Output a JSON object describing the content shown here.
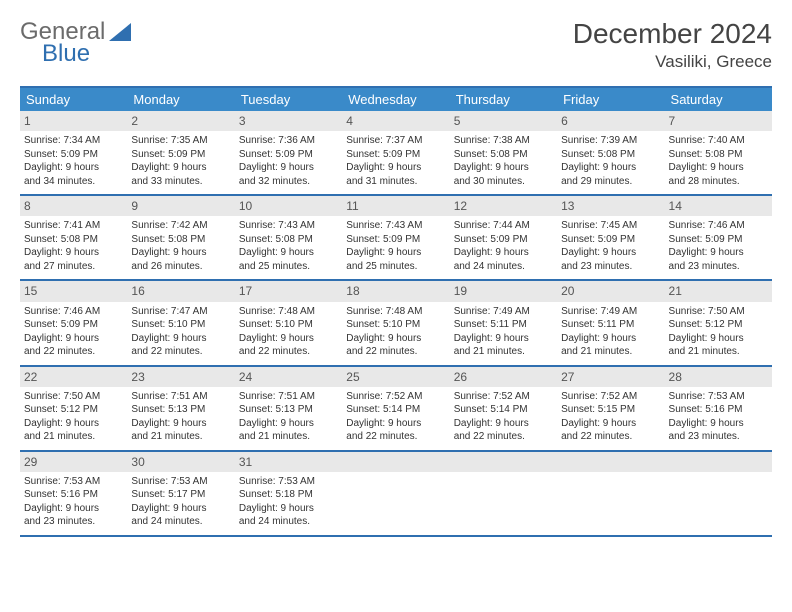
{
  "logo": {
    "text_general": "General",
    "text_blue": "Blue",
    "accent_color": "#2f6fb0"
  },
  "title": "December 2024",
  "location": "Vasiliki, Greece",
  "colors": {
    "header_bg": "#3a8ac9",
    "border": "#2f6fb0",
    "daynum_bg": "#e8e8e8",
    "text": "#333333",
    "background": "#ffffff"
  },
  "typography": {
    "title_fontsize": 28,
    "location_fontsize": 17,
    "dayheader_fontsize": 13,
    "daynum_fontsize": 12,
    "body_fontsize": 10
  },
  "day_headers": [
    "Sunday",
    "Monday",
    "Tuesday",
    "Wednesday",
    "Thursday",
    "Friday",
    "Saturday"
  ],
  "weeks": [
    [
      {
        "day": "1",
        "sunrise": "Sunrise: 7:34 AM",
        "sunset": "Sunset: 5:09 PM",
        "daylight1": "Daylight: 9 hours",
        "daylight2": "and 34 minutes."
      },
      {
        "day": "2",
        "sunrise": "Sunrise: 7:35 AM",
        "sunset": "Sunset: 5:09 PM",
        "daylight1": "Daylight: 9 hours",
        "daylight2": "and 33 minutes."
      },
      {
        "day": "3",
        "sunrise": "Sunrise: 7:36 AM",
        "sunset": "Sunset: 5:09 PM",
        "daylight1": "Daylight: 9 hours",
        "daylight2": "and 32 minutes."
      },
      {
        "day": "4",
        "sunrise": "Sunrise: 7:37 AM",
        "sunset": "Sunset: 5:09 PM",
        "daylight1": "Daylight: 9 hours",
        "daylight2": "and 31 minutes."
      },
      {
        "day": "5",
        "sunrise": "Sunrise: 7:38 AM",
        "sunset": "Sunset: 5:08 PM",
        "daylight1": "Daylight: 9 hours",
        "daylight2": "and 30 minutes."
      },
      {
        "day": "6",
        "sunrise": "Sunrise: 7:39 AM",
        "sunset": "Sunset: 5:08 PM",
        "daylight1": "Daylight: 9 hours",
        "daylight2": "and 29 minutes."
      },
      {
        "day": "7",
        "sunrise": "Sunrise: 7:40 AM",
        "sunset": "Sunset: 5:08 PM",
        "daylight1": "Daylight: 9 hours",
        "daylight2": "and 28 minutes."
      }
    ],
    [
      {
        "day": "8",
        "sunrise": "Sunrise: 7:41 AM",
        "sunset": "Sunset: 5:08 PM",
        "daylight1": "Daylight: 9 hours",
        "daylight2": "and 27 minutes."
      },
      {
        "day": "9",
        "sunrise": "Sunrise: 7:42 AM",
        "sunset": "Sunset: 5:08 PM",
        "daylight1": "Daylight: 9 hours",
        "daylight2": "and 26 minutes."
      },
      {
        "day": "10",
        "sunrise": "Sunrise: 7:43 AM",
        "sunset": "Sunset: 5:08 PM",
        "daylight1": "Daylight: 9 hours",
        "daylight2": "and 25 minutes."
      },
      {
        "day": "11",
        "sunrise": "Sunrise: 7:43 AM",
        "sunset": "Sunset: 5:09 PM",
        "daylight1": "Daylight: 9 hours",
        "daylight2": "and 25 minutes."
      },
      {
        "day": "12",
        "sunrise": "Sunrise: 7:44 AM",
        "sunset": "Sunset: 5:09 PM",
        "daylight1": "Daylight: 9 hours",
        "daylight2": "and 24 minutes."
      },
      {
        "day": "13",
        "sunrise": "Sunrise: 7:45 AM",
        "sunset": "Sunset: 5:09 PM",
        "daylight1": "Daylight: 9 hours",
        "daylight2": "and 23 minutes."
      },
      {
        "day": "14",
        "sunrise": "Sunrise: 7:46 AM",
        "sunset": "Sunset: 5:09 PM",
        "daylight1": "Daylight: 9 hours",
        "daylight2": "and 23 minutes."
      }
    ],
    [
      {
        "day": "15",
        "sunrise": "Sunrise: 7:46 AM",
        "sunset": "Sunset: 5:09 PM",
        "daylight1": "Daylight: 9 hours",
        "daylight2": "and 22 minutes."
      },
      {
        "day": "16",
        "sunrise": "Sunrise: 7:47 AM",
        "sunset": "Sunset: 5:10 PM",
        "daylight1": "Daylight: 9 hours",
        "daylight2": "and 22 minutes."
      },
      {
        "day": "17",
        "sunrise": "Sunrise: 7:48 AM",
        "sunset": "Sunset: 5:10 PM",
        "daylight1": "Daylight: 9 hours",
        "daylight2": "and 22 minutes."
      },
      {
        "day": "18",
        "sunrise": "Sunrise: 7:48 AM",
        "sunset": "Sunset: 5:10 PM",
        "daylight1": "Daylight: 9 hours",
        "daylight2": "and 22 minutes."
      },
      {
        "day": "19",
        "sunrise": "Sunrise: 7:49 AM",
        "sunset": "Sunset: 5:11 PM",
        "daylight1": "Daylight: 9 hours",
        "daylight2": "and 21 minutes."
      },
      {
        "day": "20",
        "sunrise": "Sunrise: 7:49 AM",
        "sunset": "Sunset: 5:11 PM",
        "daylight1": "Daylight: 9 hours",
        "daylight2": "and 21 minutes."
      },
      {
        "day": "21",
        "sunrise": "Sunrise: 7:50 AM",
        "sunset": "Sunset: 5:12 PM",
        "daylight1": "Daylight: 9 hours",
        "daylight2": "and 21 minutes."
      }
    ],
    [
      {
        "day": "22",
        "sunrise": "Sunrise: 7:50 AM",
        "sunset": "Sunset: 5:12 PM",
        "daylight1": "Daylight: 9 hours",
        "daylight2": "and 21 minutes."
      },
      {
        "day": "23",
        "sunrise": "Sunrise: 7:51 AM",
        "sunset": "Sunset: 5:13 PM",
        "daylight1": "Daylight: 9 hours",
        "daylight2": "and 21 minutes."
      },
      {
        "day": "24",
        "sunrise": "Sunrise: 7:51 AM",
        "sunset": "Sunset: 5:13 PM",
        "daylight1": "Daylight: 9 hours",
        "daylight2": "and 21 minutes."
      },
      {
        "day": "25",
        "sunrise": "Sunrise: 7:52 AM",
        "sunset": "Sunset: 5:14 PM",
        "daylight1": "Daylight: 9 hours",
        "daylight2": "and 22 minutes."
      },
      {
        "day": "26",
        "sunrise": "Sunrise: 7:52 AM",
        "sunset": "Sunset: 5:14 PM",
        "daylight1": "Daylight: 9 hours",
        "daylight2": "and 22 minutes."
      },
      {
        "day": "27",
        "sunrise": "Sunrise: 7:52 AM",
        "sunset": "Sunset: 5:15 PM",
        "daylight1": "Daylight: 9 hours",
        "daylight2": "and 22 minutes."
      },
      {
        "day": "28",
        "sunrise": "Sunrise: 7:53 AM",
        "sunset": "Sunset: 5:16 PM",
        "daylight1": "Daylight: 9 hours",
        "daylight2": "and 23 minutes."
      }
    ],
    [
      {
        "day": "29",
        "sunrise": "Sunrise: 7:53 AM",
        "sunset": "Sunset: 5:16 PM",
        "daylight1": "Daylight: 9 hours",
        "daylight2": "and 23 minutes."
      },
      {
        "day": "30",
        "sunrise": "Sunrise: 7:53 AM",
        "sunset": "Sunset: 5:17 PM",
        "daylight1": "Daylight: 9 hours",
        "daylight2": "and 24 minutes."
      },
      {
        "day": "31",
        "sunrise": "Sunrise: 7:53 AM",
        "sunset": "Sunset: 5:18 PM",
        "daylight1": "Daylight: 9 hours",
        "daylight2": "and 24 minutes."
      },
      {
        "empty": true
      },
      {
        "empty": true
      },
      {
        "empty": true
      },
      {
        "empty": true
      }
    ]
  ]
}
